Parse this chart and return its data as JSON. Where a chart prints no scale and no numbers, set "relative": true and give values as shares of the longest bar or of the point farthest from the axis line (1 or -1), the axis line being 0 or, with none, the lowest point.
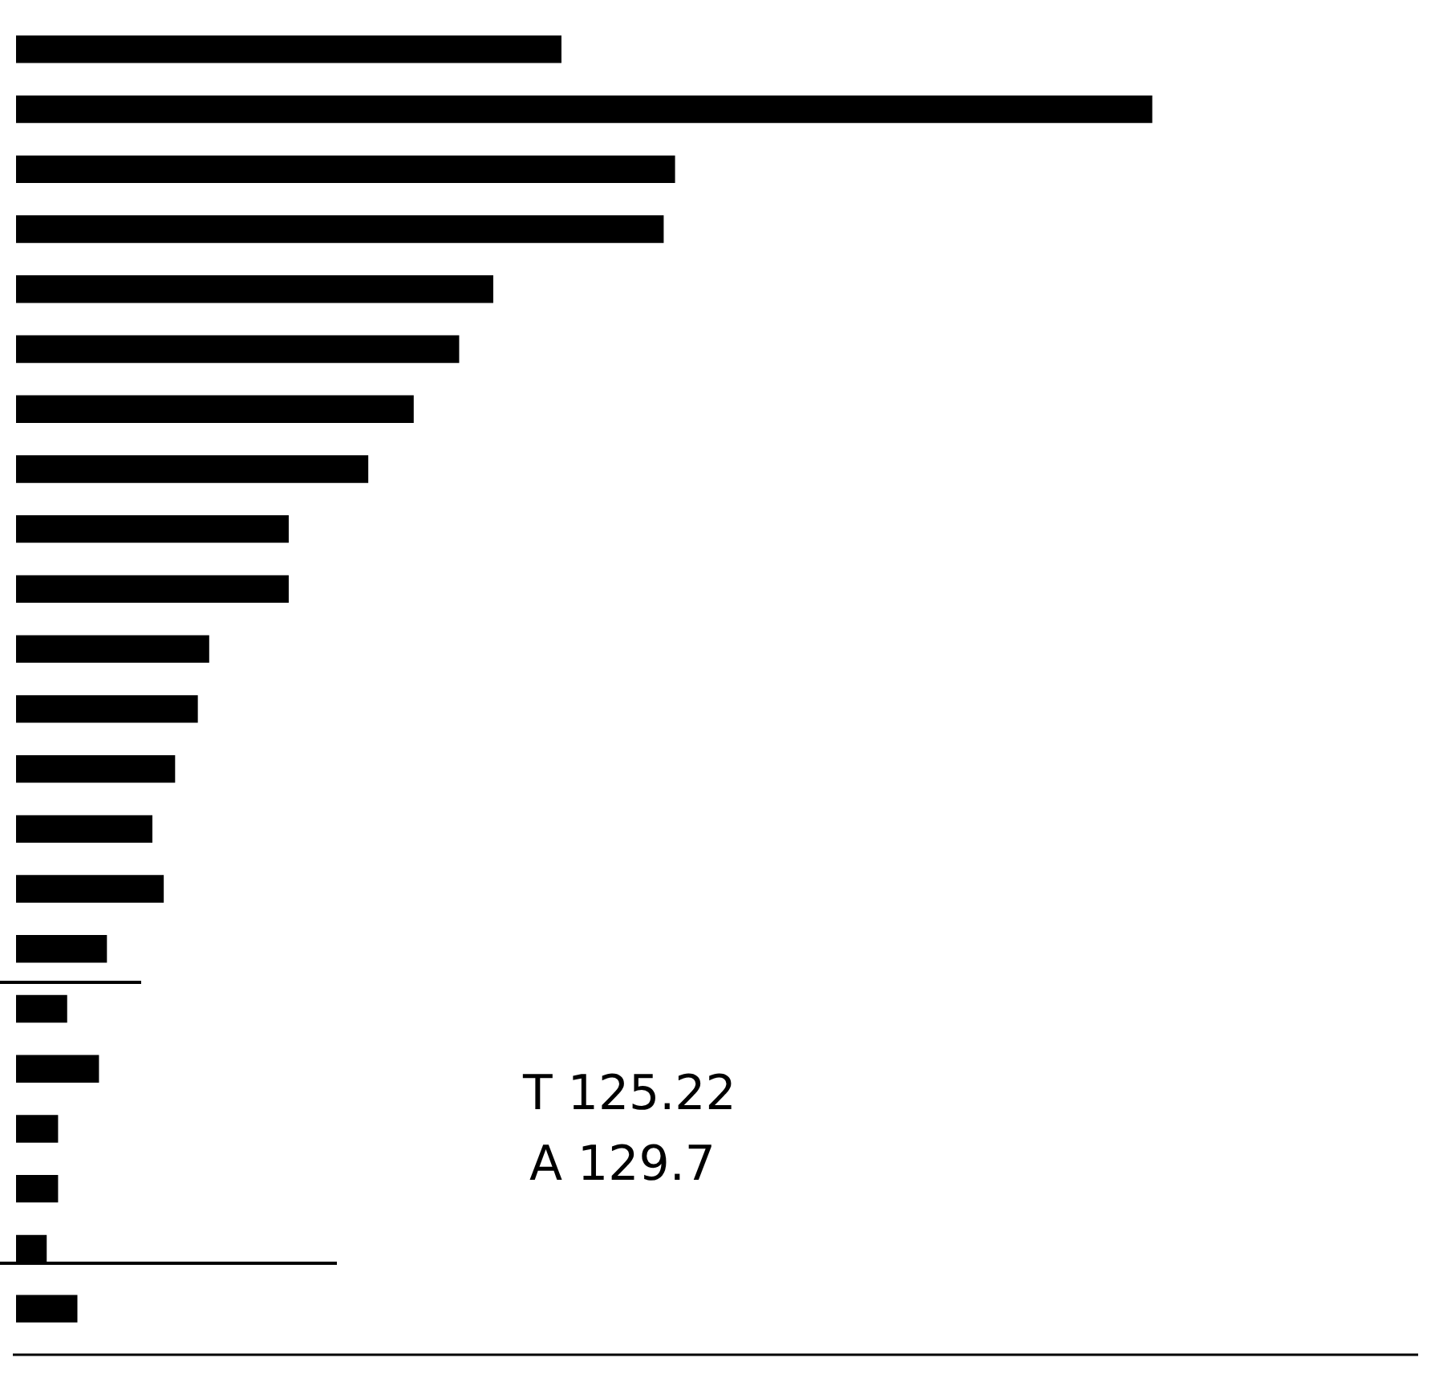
{
  "chart_data": {
    "type": "bar",
    "orientation": "horizontal",
    "relative": true,
    "color": "#000000",
    "categories": [
      null,
      null,
      null,
      null,
      null,
      null,
      null,
      null,
      null,
      null,
      null,
      null,
      null,
      null,
      null,
      null,
      null,
      null,
      null,
      null,
      null,
      null
    ],
    "values": [
      0.48,
      1,
      0.58,
      0.57,
      0.42,
      0.39,
      0.35,
      0.31,
      0.24,
      0.24,
      0.17,
      0.16,
      0.14,
      0.12,
      0.13,
      0.08,
      0.045,
      0.073,
      0.037,
      0.037,
      0.027,
      0.054
    ],
    "annotations": [
      "T 125.22",
      "A 129.7"
    ]
  }
}
